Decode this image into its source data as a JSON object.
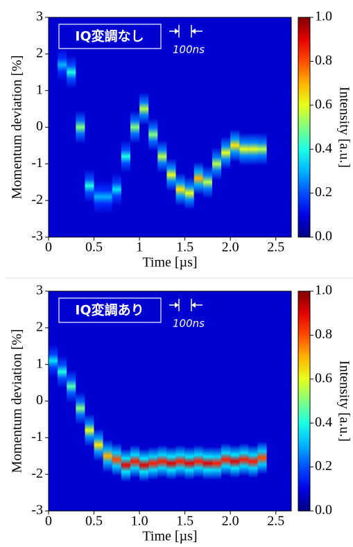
{
  "chart_data": [
    {
      "type": "heatmap",
      "colormap": "jet",
      "annotation": "IQ変調なし",
      "scale_label": "100ns",
      "xlabel": "Time [µs]",
      "ylabel": "Momentum deviation [%]",
      "xlim": [
        0,
        2.67
      ],
      "xticks": [
        0,
        0.5,
        1,
        1.5,
        {
          "value": 2,
          "label": "2.0"
        },
        2.5
      ],
      "ylim": [
        -3,
        3
      ],
      "yticks": [
        -3,
        -2,
        -1,
        0,
        1,
        2,
        3
      ],
      "x": [
        0.15,
        0.25,
        0.35,
        0.45,
        0.55,
        0.65,
        0.75,
        0.85,
        0.95,
        1.05,
        1.15,
        1.25,
        1.35,
        1.45,
        1.55,
        1.65,
        1.75,
        1.85,
        1.95,
        2.05,
        2.15,
        2.25,
        2.35
      ],
      "y": [
        1.7,
        1.5,
        0,
        -1.6,
        -1.9,
        -1.9,
        -1.7,
        -0.8,
        0,
        0.5,
        -0.2,
        -0.8,
        -1.3,
        -1.7,
        -1.8,
        -1.4,
        -1.5,
        -1,
        -0.7,
        -0.5,
        -0.6,
        -0.6,
        -0.6
      ],
      "intensity": [
        0.3,
        0.4,
        0.5,
        0.4,
        0.3,
        0.3,
        0.35,
        0.4,
        0.5,
        0.55,
        0.5,
        0.55,
        0.6,
        0.65,
        0.6,
        0.7,
        0.55,
        0.55,
        0.6,
        0.65,
        0.6,
        0.6,
        0.55
      ],
      "colorbar": {
        "label": "Intensity [a.u.]",
        "lim": [
          0,
          1
        ],
        "ticks": [
          {
            "value": 0,
            "label": "0.0"
          },
          0.2,
          0.4,
          0.6,
          0.8,
          {
            "value": 1,
            "label": "1.0"
          }
        ]
      }
    },
    {
      "type": "heatmap",
      "colormap": "jet",
      "annotation": "IQ変調あり",
      "scale_label": "100ns",
      "xlabel": "Time [µs]",
      "ylabel": "Momentum deviation [%]",
      "xlim": [
        0,
        2.67
      ],
      "xticks": [
        0,
        0.5,
        {
          "value": 1,
          "label": "1.0"
        },
        1.5,
        {
          "value": 2,
          "label": "2.0"
        },
        2.5
      ],
      "ylim": [
        -3,
        3
      ],
      "yticks": [
        -3,
        -2,
        -1,
        0,
        1,
        2,
        3
      ],
      "x": [
        0.05,
        0.15,
        0.25,
        0.35,
        0.45,
        0.55,
        0.65,
        0.75,
        0.85,
        0.95,
        1.05,
        1.15,
        1.25,
        1.35,
        1.45,
        1.55,
        1.65,
        1.75,
        1.85,
        1.95,
        2.05,
        2.15,
        2.25,
        2.35
      ],
      "y": [
        1.1,
        0.8,
        0.4,
        -0.2,
        -0.8,
        -1.2,
        -1.5,
        -1.6,
        -1.75,
        -1.65,
        -1.75,
        -1.7,
        -1.65,
        -1.7,
        -1.65,
        -1.7,
        -1.65,
        -1.7,
        -1.7,
        -1.6,
        -1.65,
        -1.6,
        -1.65,
        -1.55
      ],
      "intensity": [
        0.35,
        0.4,
        0.45,
        0.5,
        0.6,
        0.65,
        0.7,
        0.8,
        0.9,
        0.85,
        0.9,
        0.85,
        0.85,
        0.9,
        0.85,
        0.9,
        0.85,
        0.9,
        0.85,
        0.85,
        0.9,
        0.85,
        0.85,
        0.8
      ],
      "colorbar": {
        "label": "Intensity [a.u.]",
        "lim": [
          0,
          1
        ],
        "ticks": [
          {
            "value": 0,
            "label": "0.0"
          },
          0.2,
          0.4,
          0.6,
          0.8,
          {
            "value": 1,
            "label": "1.0"
          }
        ]
      }
    }
  ]
}
